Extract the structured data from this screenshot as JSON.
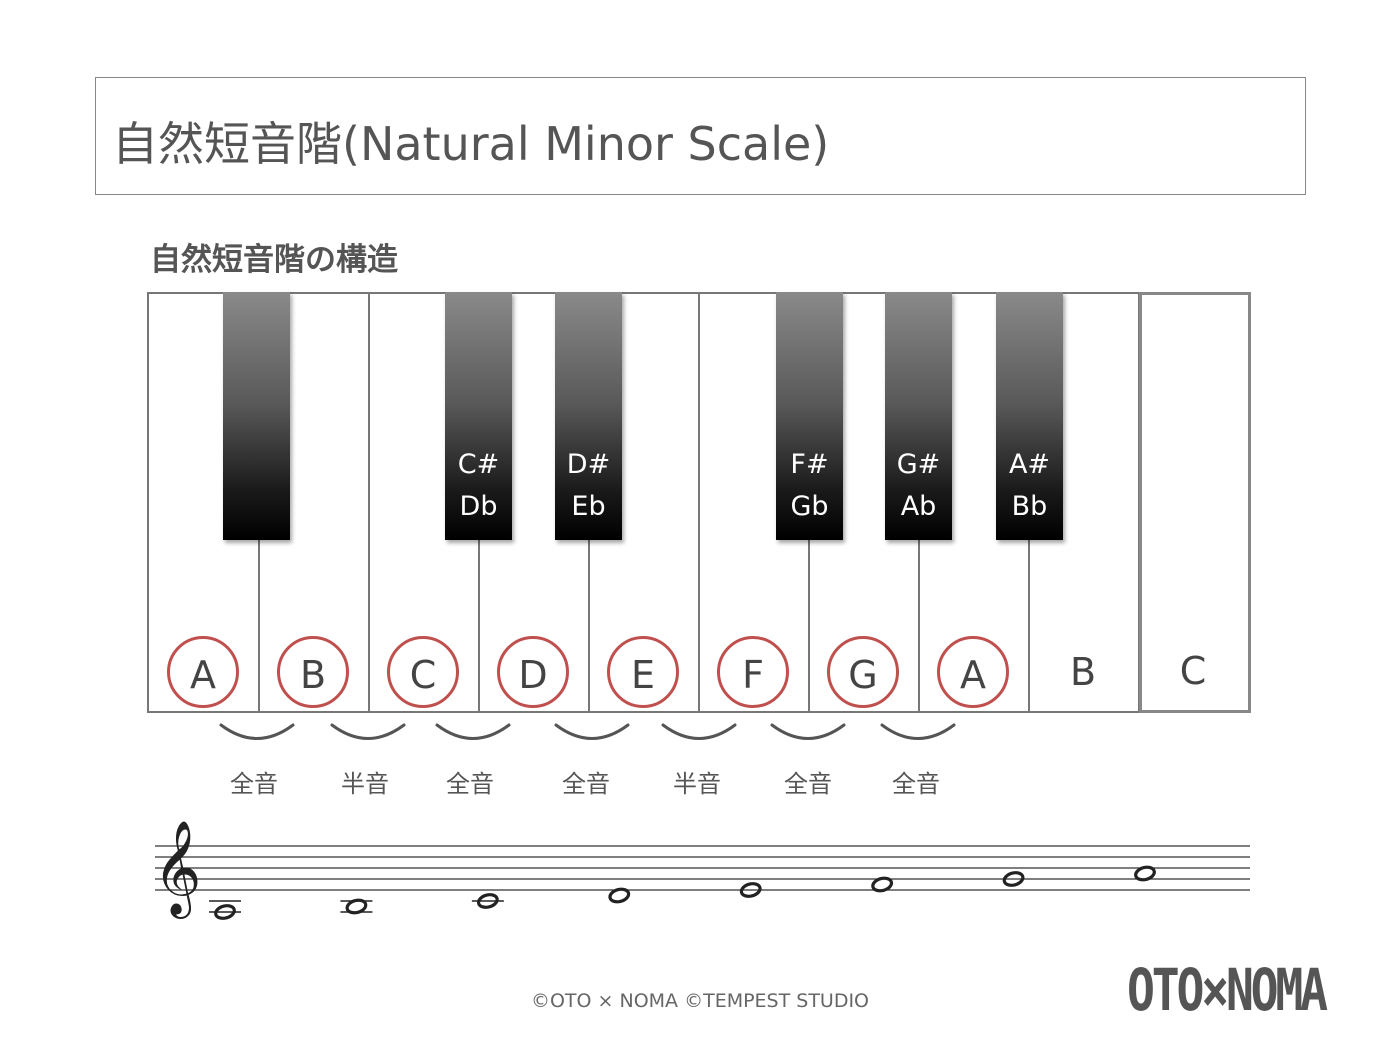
{
  "title": "自然短音階(Natural Minor Scale)",
  "subtitle": "自然短音階の構造",
  "keyboard": {
    "white_keys": [
      {
        "name": "A",
        "in_scale": true
      },
      {
        "name": "B",
        "in_scale": true
      },
      {
        "name": "C",
        "in_scale": true
      },
      {
        "name": "D",
        "in_scale": true
      },
      {
        "name": "E",
        "in_scale": true
      },
      {
        "name": "F",
        "in_scale": true
      },
      {
        "name": "G",
        "in_scale": true
      },
      {
        "name": "A",
        "in_scale": true
      },
      {
        "name": "B",
        "in_scale": false
      },
      {
        "name": "C",
        "in_scale": false
      }
    ],
    "black_keys": [
      {
        "sharp": "",
        "flat": ""
      },
      {
        "sharp": "C#",
        "flat": "Db"
      },
      {
        "sharp": "D#",
        "flat": "Eb"
      },
      {
        "sharp": "F#",
        "flat": "Gb"
      },
      {
        "sharp": "G#",
        "flat": "Ab"
      },
      {
        "sharp": "A#",
        "flat": "Bb"
      }
    ],
    "circle_color": "#c0504d"
  },
  "steps": [
    "全音",
    "半音",
    "全音",
    "全音",
    "半音",
    "全音",
    "全音"
  ],
  "staff": {
    "clef": "treble",
    "notes": [
      "A3",
      "B3",
      "C4",
      "D4",
      "E4",
      "F4",
      "G4",
      "A4"
    ]
  },
  "footer": {
    "copyright": "©OTO × NOMA ©TEMPEST STUDIO",
    "logo": "OTO×NOMA"
  }
}
